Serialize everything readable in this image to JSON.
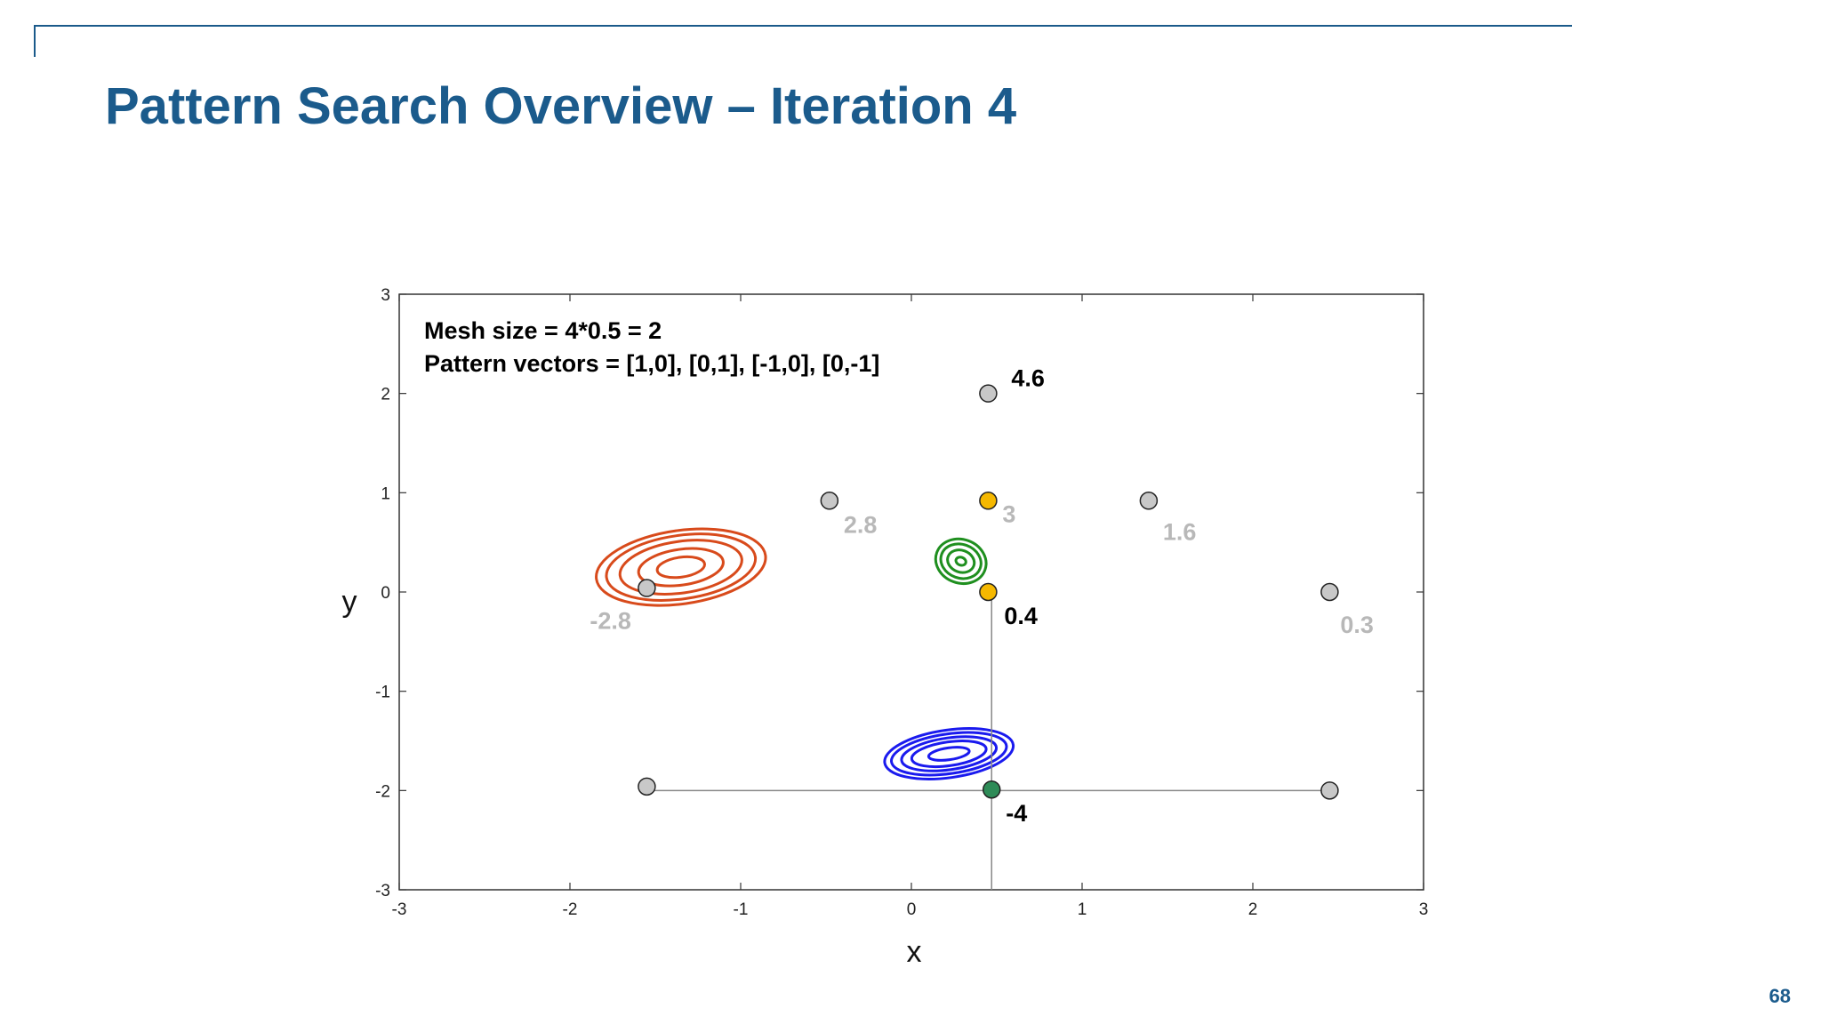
{
  "slide": {
    "title": "Pattern Search Overview – Iteration 4",
    "page_number": "68"
  },
  "chart_data": {
    "type": "scatter",
    "title": "",
    "xlabel": "x",
    "ylabel": "y",
    "xlim": [
      -3,
      3
    ],
    "ylim": [
      -3,
      3
    ],
    "x_ticks": [
      "-3",
      "-2",
      "-1",
      "0",
      "1",
      "2",
      "3"
    ],
    "y_ticks": [
      "3",
      "2",
      "1",
      "0",
      "-1",
      "-2",
      "-3"
    ],
    "annotations": [
      "Mesh size = 4*0.5 = 2",
      "Pattern vectors = [1,0], [0,1], [-1,0], [0,-1]"
    ],
    "points": [
      {
        "x": 0.45,
        "y": 2.0,
        "label": "4.6",
        "color": "#c8c8c8",
        "label_color": "#000000"
      },
      {
        "x": -0.48,
        "y": 0.92,
        "label": "2.8",
        "color": "#c8c8c8",
        "label_color": "#b8b8b8"
      },
      {
        "x": 0.45,
        "y": 0.92,
        "label": "3",
        "color": "#f5b800",
        "label_color": "#b8b8b8"
      },
      {
        "x": 1.39,
        "y": 0.92,
        "label": "1.6",
        "color": "#c8c8c8",
        "label_color": "#b8b8b8"
      },
      {
        "x": -1.55,
        "y": 0.04,
        "label": "-2.8",
        "color": "#c8c8c8",
        "label_color": "#b8b8b8"
      },
      {
        "x": 0.45,
        "y": 0.0,
        "label": "0.4",
        "color": "#f5b800",
        "label_color": "#000000"
      },
      {
        "x": 2.45,
        "y": 0.0,
        "label": "0.3",
        "color": "#c8c8c8",
        "label_color": "#b8b8b8"
      },
      {
        "x": -1.55,
        "y": -1.96,
        "label": "",
        "color": "#c8c8c8",
        "label_color": "#000000"
      },
      {
        "x": 0.47,
        "y": -1.99,
        "label": "-4",
        "color": "#2e8b57",
        "label_color": "#000000"
      },
      {
        "x": 2.45,
        "y": -2.0,
        "label": "",
        "color": "#c8c8c8",
        "label_color": "#000000"
      }
    ],
    "lines": [
      {
        "from": [
          -1.55,
          -2.0
        ],
        "to": [
          2.45,
          -2.0
        ]
      },
      {
        "from": [
          0.47,
          0.0
        ],
        "to": [
          0.47,
          -3.0
        ]
      }
    ],
    "contours": [
      {
        "center": [
          -1.35,
          0.25
        ],
        "radii_x": [
          0.14,
          0.25,
          0.36,
          0.44,
          0.5
        ],
        "radii_y": [
          0.1,
          0.18,
          0.26,
          0.32,
          0.37
        ],
        "color": "#d84a1b"
      },
      {
        "center": [
          0.29,
          0.31
        ],
        "radii_x": [
          0.03,
          0.08,
          0.12,
          0.15
        ],
        "radii_y": [
          0.04,
          0.11,
          0.17,
          0.22
        ],
        "color": "#1f8f1f"
      },
      {
        "center": [
          0.22,
          -1.63
        ],
        "radii_x": [
          0.12,
          0.22,
          0.28,
          0.34,
          0.38
        ],
        "radii_y": [
          0.06,
          0.12,
          0.16,
          0.2,
          0.24
        ],
        "color": "#1a1aee"
      }
    ]
  }
}
